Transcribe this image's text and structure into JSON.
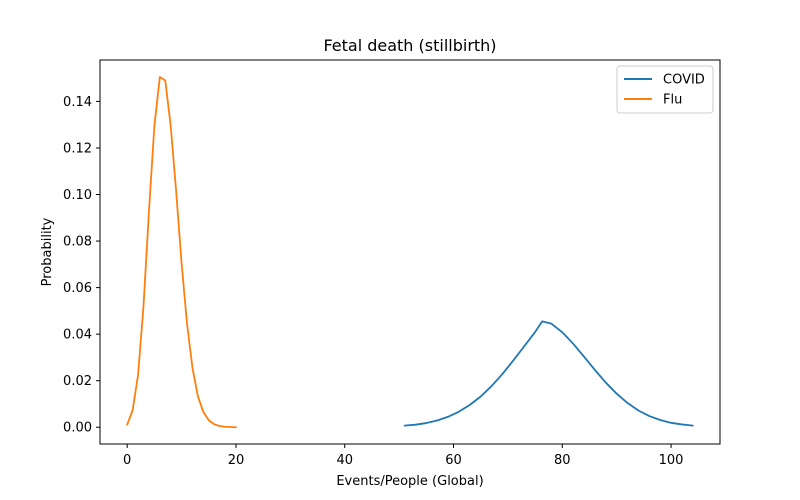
{
  "chart_data": {
    "type": "line",
    "title": "Fetal death (stillbirth)",
    "xlabel": "Events/People (Global)",
    "ylabel": "Probability",
    "xlim": [
      -5,
      109
    ],
    "ylim": [
      -0.0072,
      0.1578
    ],
    "xticks": [
      0,
      20,
      40,
      60,
      80,
      100
    ],
    "yticks": [
      0.0,
      0.02,
      0.04,
      0.06,
      0.08,
      0.1,
      0.12,
      0.14
    ],
    "ytick_labels": [
      "0.00",
      "0.02",
      "0.04",
      "0.06",
      "0.08",
      "0.10",
      "0.12",
      "0.14"
    ],
    "legend_position": "upper-right",
    "grid": false,
    "series": [
      {
        "name": "COVID",
        "color": "#1f77b4",
        "x": [
          51,
          53,
          55,
          57,
          59,
          61,
          63,
          65,
          67,
          69,
          71,
          73,
          75,
          76.3,
          78,
          80,
          82,
          84,
          86,
          88,
          90,
          92,
          94,
          96,
          98,
          100,
          102,
          104
        ],
        "y": [
          0.0007,
          0.0011,
          0.0018,
          0.0029,
          0.0045,
          0.0067,
          0.0096,
          0.0132,
          0.0177,
          0.0229,
          0.0287,
          0.0348,
          0.0409,
          0.0455,
          0.0445,
          0.0408,
          0.0359,
          0.0303,
          0.0246,
          0.0192,
          0.0144,
          0.0104,
          0.0072,
          0.0048,
          0.0031,
          0.0019,
          0.0012,
          0.0007
        ]
      },
      {
        "name": "Flu",
        "color": "#ff7f0e",
        "x": [
          0,
          1,
          2,
          3,
          4,
          5,
          6,
          7,
          8,
          9,
          10,
          11,
          12,
          13,
          14,
          15,
          16,
          17,
          18,
          19,
          20
        ],
        "y": [
          0.0011,
          0.0073,
          0.0225,
          0.0521,
          0.0928,
          0.1295,
          0.1505,
          0.149,
          0.1295,
          0.1015,
          0.0705,
          0.0445,
          0.0255,
          0.0133,
          0.0066,
          0.003,
          0.0013,
          0.0005,
          0.0002,
          0.0001,
          0.0
        ]
      }
    ]
  }
}
